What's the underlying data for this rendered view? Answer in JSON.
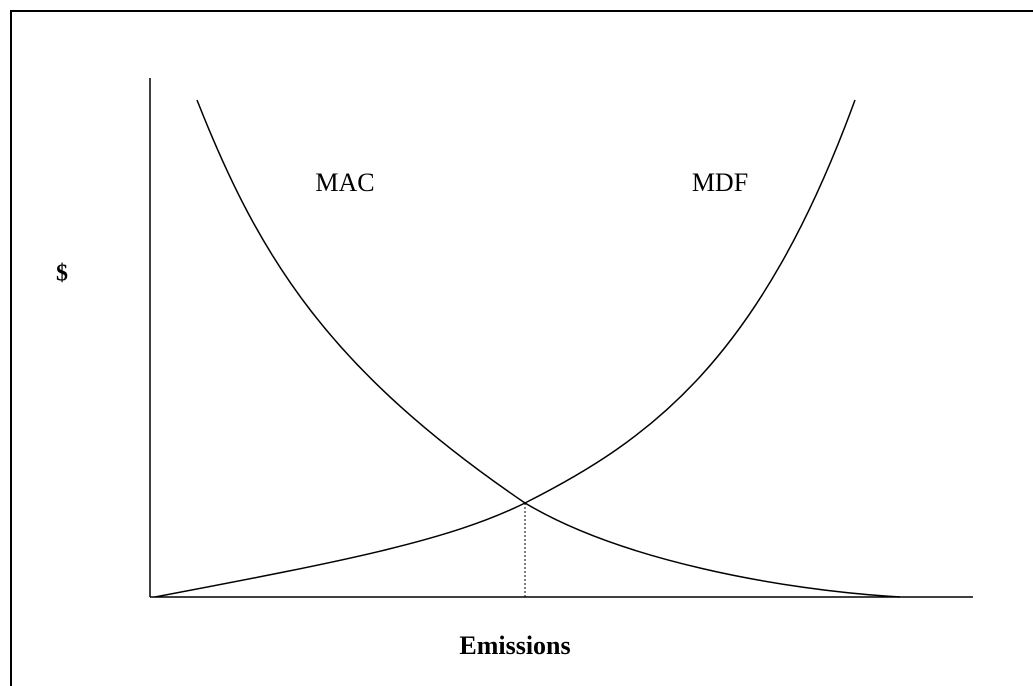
{
  "diagram": {
    "y_label": "$",
    "x_label": "Emissions",
    "curves": [
      {
        "label": "MAC"
      },
      {
        "label": "MDF"
      }
    ]
  }
}
